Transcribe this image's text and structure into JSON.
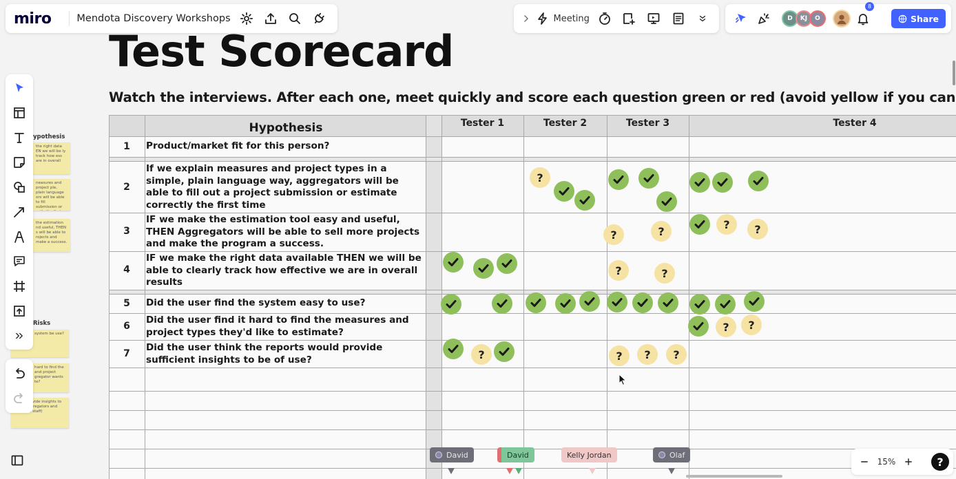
{
  "app": {
    "logo": "miro",
    "board_name": "Mendota Discovery Workshops"
  },
  "top_left_icons": [
    "settings-gear-icon",
    "upload-export-icon",
    "search-icon",
    "plug-integrations-icon"
  ],
  "top_center": {
    "meeting_label": "Meeting",
    "icons": [
      "chevron-right-icon",
      "lightning-icon",
      "timer-icon",
      "sticky-note-add-icon",
      "present-icon",
      "notes-icon",
      "chevron-double-down-icon"
    ]
  },
  "top_right": {
    "collaborators": [
      {
        "initials": "D",
        "color": "#6c8f8a",
        "ring": "#7fc7a8"
      },
      {
        "initials": "KJ",
        "color": "#8c8f9a",
        "ring": "#f08b8b"
      },
      {
        "initials": "O",
        "color": "#8d8aa0",
        "ring": "#f06b6b"
      }
    ],
    "notifications_count": "8",
    "share_label": "Share"
  },
  "board": {
    "title": "Test Scorecard",
    "instructions": "Watch the interviews. After each one, meet quickly and score each question green or red (avoid yellow if you can).",
    "hypothesis_header": "Hypothesis",
    "tester_headers": [
      "Tester 1",
      "Tester 2",
      "Tester 3",
      "Tester 4"
    ],
    "rows": [
      {
        "num": "1",
        "text": "Product/market fit for this person?"
      },
      {
        "num": "2",
        "text": "If we explain measures and project types in a simple, plain language way, aggregators will be able to fill out a project submission or estimate correctly the first time"
      },
      {
        "num": "3",
        "text": "IF we make the estimation tool easy and useful, THEN Aggregators will be able to sell more projects and make the program a success."
      },
      {
        "num": "4",
        "text": "IF we make the right data available THEN we will be able to clearly track how effective we are in overall results"
      },
      {
        "num": "5",
        "text": "Did the user find the system easy to use?"
      },
      {
        "num": "6",
        "text": "Did the user find it hard to find the measures and project types they'd like to estimate?"
      },
      {
        "num": "7",
        "text": "Did the user think the reports would provide sufficient insights to be of use?"
      }
    ],
    "question_mark": "?",
    "side_panel": {
      "hypothesis_label": "ypothesis",
      "risks_label": "Risks",
      "stickies": [
        "the right data EN we will be ly track how ess are in overall",
        "neasures and project ple, plain language ors will be able to fill submission or ectly the first time",
        "the estimation nd useful, THEN s will be able to rojects and make a success.",
        "system be use?",
        "hard to find the and project gregator wants te?",
        "ports provide insights to be of aggregators and program staff)"
      ]
    }
  },
  "cursors": [
    {
      "name": "David",
      "bg": "#6e6e78",
      "text": "#e8e8e8",
      "dot": "#8a8ab0",
      "pointer": "#6e6e78"
    },
    {
      "name": "David",
      "bg": "#7fc79a",
      "text": "#1a3a28",
      "dot": "#e07070",
      "pointer": "#e07070"
    },
    {
      "name": "Kelly Jordan",
      "bg": "#f0c8c8",
      "text": "#333333",
      "dot": "#f0c8c8",
      "pointer": "#f0c8c8"
    },
    {
      "name": "Olaf",
      "bg": "#6e6e78",
      "text": "#e8e8e8",
      "dot": "#8a8ab0",
      "pointer": "#6e6e78"
    }
  ],
  "zoom": {
    "level": "15%",
    "help": "?"
  },
  "colors": {
    "check_green": "#8fbf5a",
    "question_yellow": "#f6e2a3",
    "share_blue": "#4262ff"
  }
}
